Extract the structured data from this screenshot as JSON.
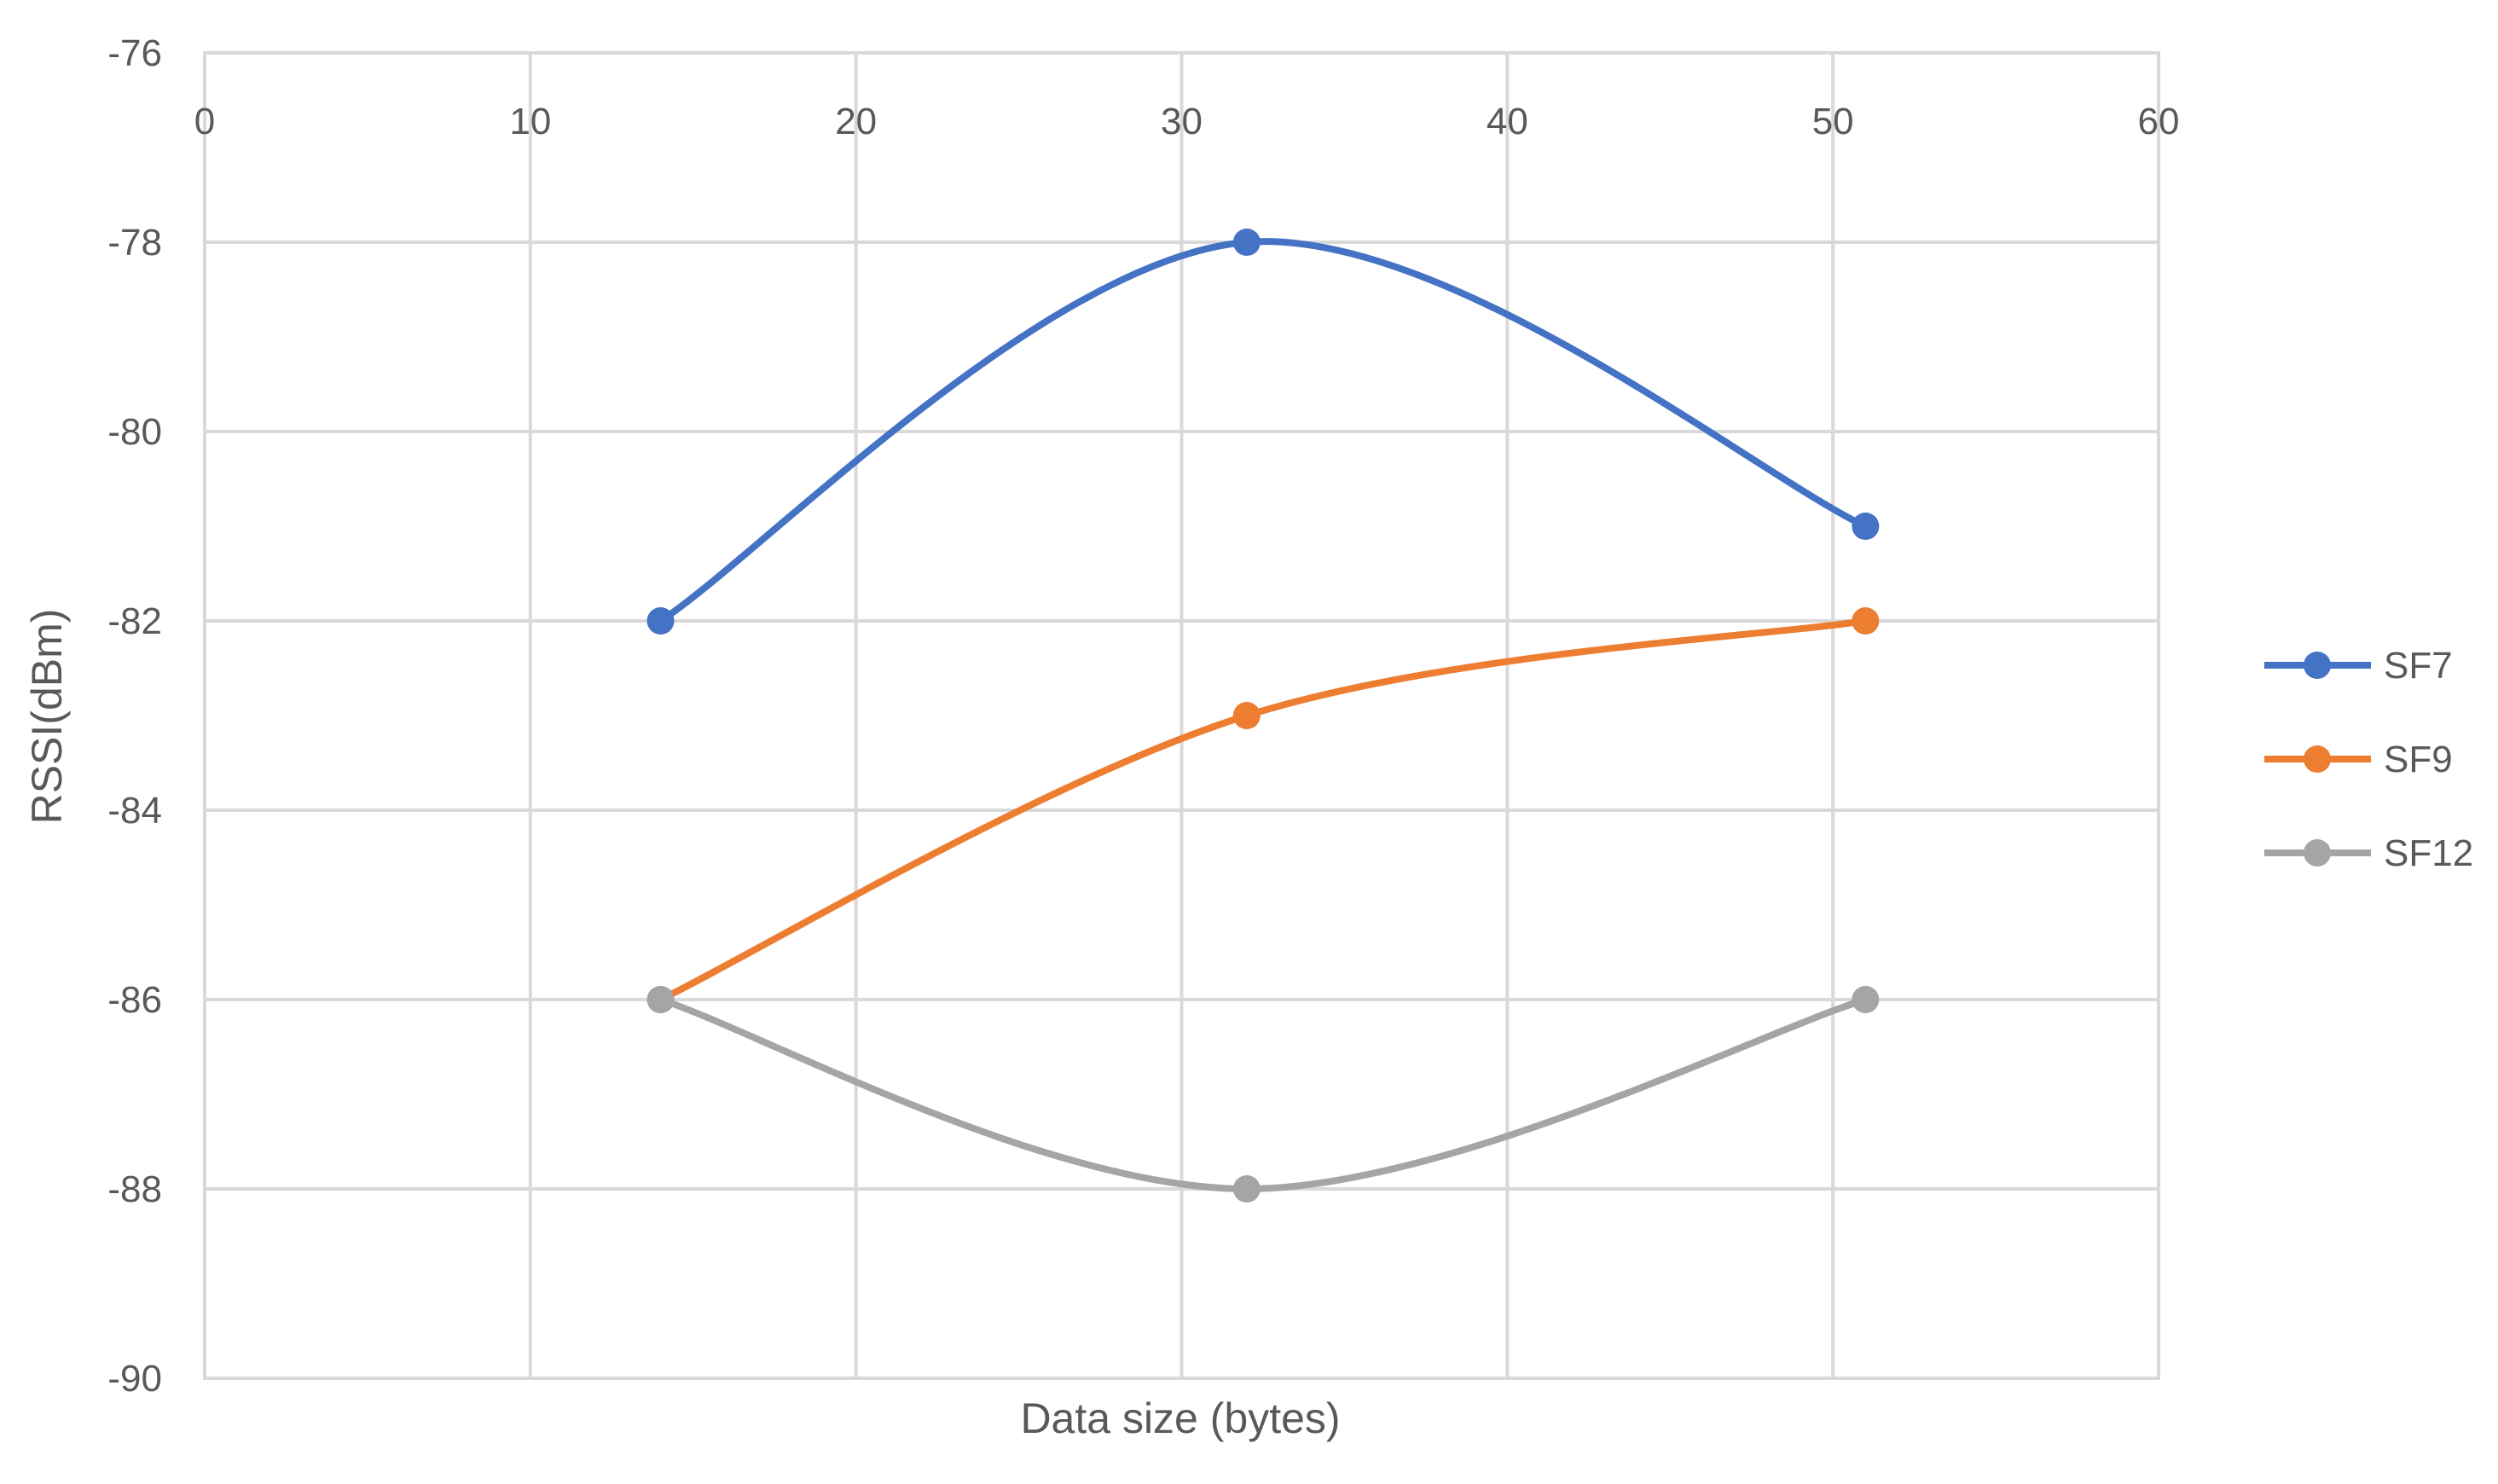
{
  "chart_data": {
    "type": "line",
    "title": "",
    "xlabel": "Data size (bytes)",
    "ylabel": "RSSI(dBm)",
    "xlim": [
      0,
      60
    ],
    "ylim": [
      -90,
      -76
    ],
    "xticks": [
      0,
      10,
      20,
      30,
      40,
      50,
      60
    ],
    "yticks": [
      -76,
      -78,
      -80,
      -82,
      -84,
      -86,
      -88,
      -90
    ],
    "x_tick_labels": [
      "0",
      "10",
      "20",
      "30",
      "40",
      "50",
      "60"
    ],
    "y_tick_labels": [
      "-76",
      "-78",
      "-80",
      "-82",
      "-84",
      "-86",
      "-88",
      "-90"
    ],
    "x_axis_position": "top",
    "grid": true,
    "smooth": true,
    "legend": "right",
    "series": [
      {
        "name": "SF7",
        "color": "#4472C4",
        "x": [
          14,
          32,
          51
        ],
        "y": [
          -82,
          -78,
          -81
        ]
      },
      {
        "name": "SF9",
        "color": "#ED7D31",
        "x": [
          14,
          32,
          51
        ],
        "y": [
          -86,
          -83,
          -82
        ]
      },
      {
        "name": "SF12",
        "color": "#A5A5A5",
        "x": [
          14,
          32,
          51
        ],
        "y": [
          -86,
          -88,
          -86
        ]
      }
    ]
  }
}
